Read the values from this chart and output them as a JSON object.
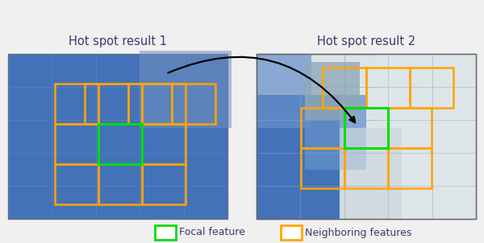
{
  "title1": "Hot spot result 1",
  "title2": "Hot spot result 2",
  "legend_focal": "Focal feature",
  "legend_neighbor": "Neighboring features",
  "focal_color": "#00dd00",
  "neighbor_color": "#FFA500",
  "dark_blue": "#4472b8",
  "medium_blue": "#6690cc",
  "light_blue_gray": "#8aaac0",
  "tile_line": "#5580c8",
  "light_gray_blue": "#c8d4dc",
  "very_light": "#e0e5e8",
  "panel2_right": "#dde3e6",
  "panel2_gray_patch": "#a0b4be",
  "title_color": "#3a3a6a",
  "background": "#f0f0f0",
  "text_color": "#3a3a6a",
  "panel_border": "#666666"
}
